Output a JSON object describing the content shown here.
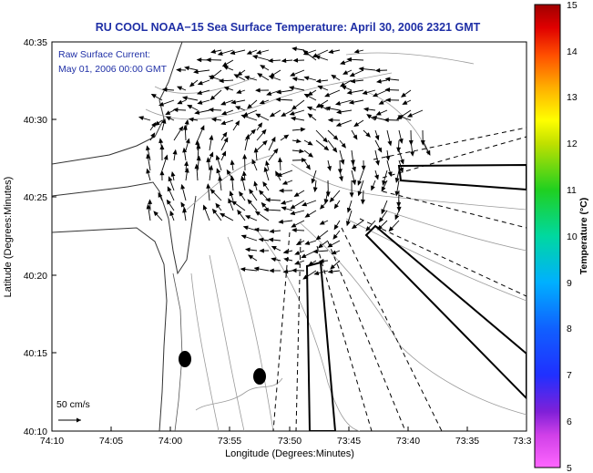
{
  "chart_data": {
    "type": "scatter",
    "title": "RU COOL  NOAA−15  Sea Surface Temperature:  April 30, 2006 2321 GMT",
    "xlabel": "Longitude (Degrees:Minutes)",
    "ylabel": "Latitude (Degrees:Minutes)",
    "x_ticks": [
      "74:10",
      "74:05",
      "74:00",
      "73:55",
      "73:50",
      "73:45",
      "73:40",
      "73:35",
      "73:3"
    ],
    "y_ticks": [
      "40:35",
      "40:30",
      "40:25",
      "40:20",
      "40:15",
      "40:10"
    ],
    "annotations": [
      "Raw Surface Current:",
      "May 01, 2006 00:00 GMT"
    ],
    "reference_vector_label": "50 cm/s",
    "colorbar": {
      "label": "Temperature (°C)",
      "ticks": [
        "15",
        "14",
        "13",
        "12",
        "11",
        "10",
        "9",
        "8",
        "7",
        "6",
        "5"
      ],
      "range": [
        5,
        15
      ]
    },
    "grid": false
  }
}
